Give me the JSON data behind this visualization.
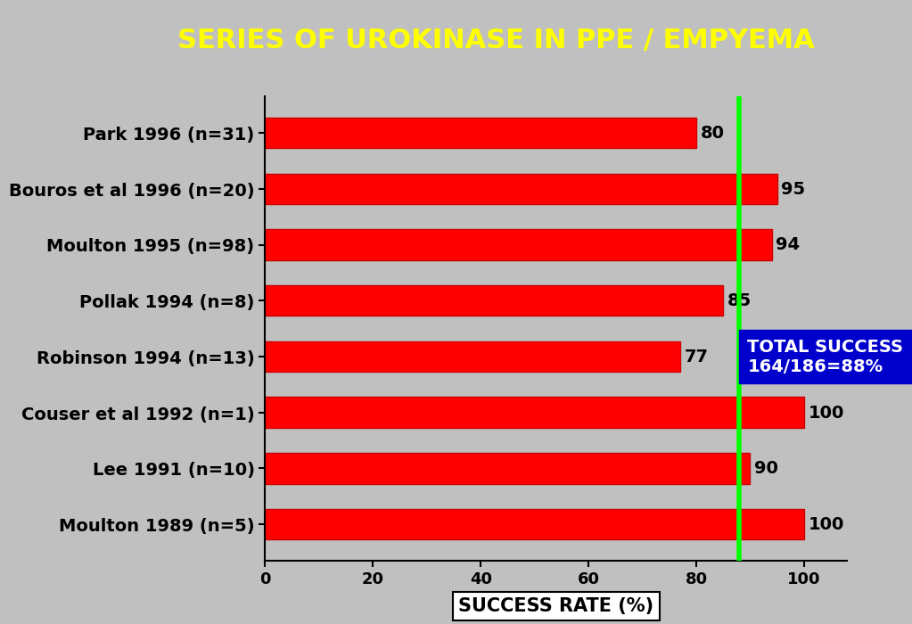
{
  "title": "SERIES OF UROKINASE IN PPE / EMPYEMA",
  "title_color": "#FFFF00",
  "title_bg_color": "#0000CC",
  "categories": [
    "Park 1996 (n=31)",
    "Bouros et al 1996 (n=20)",
    "Moulton 1995 (n=98)",
    "Pollak 1994 (n=8)",
    "Robinson 1994 (n=13)",
    "Couser et al 1992 (n=1)",
    "Lee 1991 (n=10)",
    "Moulton 1989 (n=5)"
  ],
  "values": [
    80,
    95,
    94,
    85,
    77,
    100,
    90,
    100
  ],
  "bar_color": "#FF0000",
  "bar_edge_color": "#CC0000",
  "xlabel": "SUCCESS RATE (%)",
  "xlim": [
    0,
    108
  ],
  "xticks": [
    0,
    20,
    40,
    60,
    80,
    100
  ],
  "vline_x": 88,
  "vline_color": "#00FF00",
  "annotation_line1": "TOTAL SUCCESS",
  "annotation_line2": "164/186=88%",
  "annotation_bg": "#0000CC",
  "annotation_text_color": "#FFFFFF",
  "plot_bg_color": "#C0C0C0",
  "fig_bg_color": "#C0C0C0",
  "value_label_fontsize": 14,
  "category_fontsize": 14,
  "xlabel_fontsize": 15,
  "title_fontsize": 22
}
